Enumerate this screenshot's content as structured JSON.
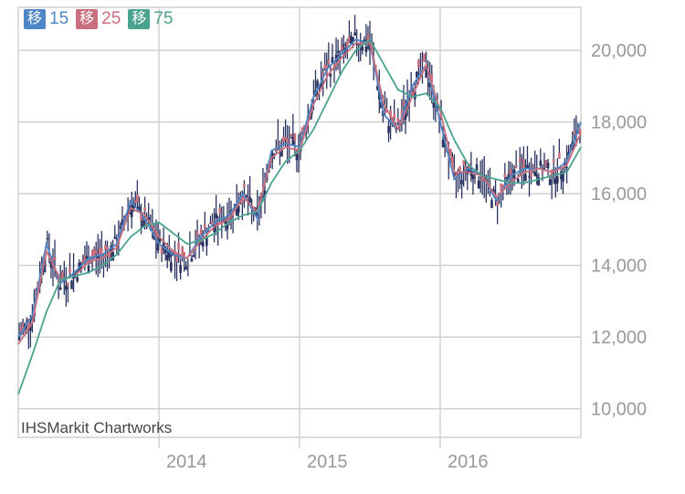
{
  "legend": [
    {
      "badge": "移",
      "label": "15",
      "color": "#4f86c6"
    },
    {
      "badge": "移",
      "label": "25",
      "color": "#c96f7e"
    },
    {
      "badge": "移",
      "label": "75",
      "color": "#4aa38f"
    }
  ],
  "watermark": "IHSMarkit Chartworks",
  "colors": {
    "candle": "#2a3360",
    "ma15": "#4f86c6",
    "ma25": "#c96f7e",
    "ma75": "#4aa38f",
    "grid": "#d0d0d0",
    "axis_text": "#999999"
  },
  "chart_data": {
    "type": "line",
    "title": "",
    "xlabel": "",
    "ylabel": "",
    "x_ticks": [
      "2014",
      "2015",
      "2016"
    ],
    "y_ticks": [
      "10,000",
      "12,000",
      "14,000",
      "16,000",
      "18,000",
      "20,000"
    ],
    "ylim": [
      9200,
      21200
    ],
    "grid": true,
    "y_axis_side": "right",
    "x": [
      2013.0,
      2013.1,
      2013.2,
      2013.3,
      2013.4,
      2013.5,
      2013.6,
      2013.7,
      2013.8,
      2013.9,
      2014.0,
      2014.1,
      2014.2,
      2014.3,
      2014.4,
      2014.5,
      2014.6,
      2014.7,
      2014.8,
      2014.9,
      2015.0,
      2015.1,
      2015.2,
      2015.3,
      2015.4,
      2015.5,
      2015.6,
      2015.7,
      2015.8,
      2015.9,
      2016.0,
      2016.1,
      2016.2,
      2016.3,
      2016.4,
      2016.5,
      2016.6,
      2016.7,
      2016.8,
      2016.9,
      2017.0
    ],
    "series": [
      {
        "name": "15",
        "values": [
          12000,
          12600,
          14600,
          13500,
          13800,
          14200,
          14300,
          14600,
          15800,
          15300,
          14600,
          14300,
          14200,
          14800,
          15200,
          15400,
          16000,
          15300,
          17200,
          17400,
          17300,
          18700,
          19500,
          19900,
          20300,
          20200,
          18200,
          17800,
          19000,
          19600,
          18000,
          16400,
          16700,
          16500,
          15800,
          16500,
          16700,
          16700,
          16600,
          16900,
          18000
        ]
      },
      {
        "name": "25",
        "values": [
          11800,
          12400,
          14400,
          13600,
          13700,
          14100,
          14200,
          14500,
          15600,
          15400,
          14800,
          14400,
          14200,
          14700,
          15100,
          15300,
          15900,
          15500,
          17000,
          17300,
          17200,
          18500,
          19300,
          19800,
          20200,
          20200,
          18500,
          17800,
          18700,
          19600,
          18300,
          16600,
          16600,
          16500,
          15900,
          16300,
          16600,
          16700,
          16600,
          16800,
          17700
        ]
      },
      {
        "name": "75",
        "values": [
          10400,
          11500,
          12700,
          13600,
          13700,
          13800,
          14000,
          14300,
          14800,
          15100,
          15200,
          14900,
          14600,
          14700,
          14900,
          15200,
          15400,
          15500,
          16300,
          16900,
          17200,
          17800,
          18600,
          19400,
          20000,
          20300,
          19600,
          18900,
          18700,
          18800,
          18400,
          17500,
          16800,
          16500,
          16400,
          16300,
          16300,
          16400,
          16500,
          16600,
          17300
        ]
      }
    ]
  }
}
